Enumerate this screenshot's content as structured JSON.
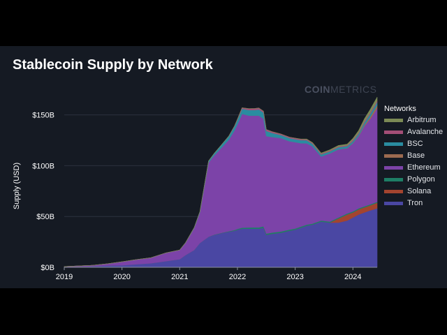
{
  "title": "Stablecoin Supply by Network",
  "brand": {
    "part1": "COIN",
    "part2": "METRICS"
  },
  "chart_data": {
    "type": "area",
    "stacked": true,
    "title": "Stablecoin Supply by Network",
    "xlabel": "",
    "ylabel": "Supply (USD)",
    "xlim": [
      2019.0,
      2024.42
    ],
    "ylim": [
      0,
      160
    ],
    "x_ticks": [
      "2019",
      "2020",
      "2021",
      "2022",
      "2023",
      "2024"
    ],
    "y_ticks": [
      "$0B",
      "$50B",
      "$100B",
      "$150B"
    ],
    "grid": true,
    "legend_title": "Networks",
    "legend_position": "right",
    "x": [
      2019.0,
      2019.5,
      2019.75,
      2020.0,
      2020.25,
      2020.5,
      2020.75,
      2021.0,
      2021.1,
      2021.25,
      2021.35,
      2021.5,
      2021.6,
      2021.75,
      2021.85,
      2021.95,
      2022.0,
      2022.08,
      2022.2,
      2022.3,
      2022.37,
      2022.45,
      2022.5,
      2022.6,
      2022.75,
      2022.9,
      2023.0,
      2023.1,
      2023.2,
      2023.3,
      2023.45,
      2023.6,
      2023.75,
      2023.9,
      2024.0,
      2024.1,
      2024.2,
      2024.3,
      2024.42
    ],
    "series": [
      {
        "name": "Arbitrum",
        "color": "#7b8a55",
        "values": [
          0,
          0,
          0,
          0,
          0,
          0,
          0,
          0,
          0,
          0,
          0,
          0,
          0,
          0,
          0,
          0,
          0,
          0,
          0,
          0,
          0,
          0,
          0,
          0,
          0,
          0,
          0,
          0.2,
          0.4,
          0.5,
          0.6,
          0.8,
          1,
          1,
          1.5,
          2,
          2.5,
          3,
          3.5
        ]
      },
      {
        "name": "Avalanche",
        "color": "#a34e76",
        "values": [
          0,
          0,
          0,
          0,
          0,
          0,
          0,
          0,
          0,
          0,
          0,
          0,
          0,
          0,
          0.2,
          0.4,
          0.6,
          1,
          1.4,
          1.5,
          1.5,
          1.4,
          1.4,
          1.2,
          1,
          1,
          1,
          0.9,
          0.8,
          0.8,
          0.8,
          0.8,
          0.8,
          0.9,
          1,
          1.1,
          1.2,
          1.3,
          1.4
        ]
      },
      {
        "name": "BSC",
        "color": "#2a8ca0",
        "values": [
          0,
          0,
          0,
          0,
          0,
          0,
          0,
          0,
          0.2,
          0.5,
          0.8,
          1.5,
          2,
          3,
          3.5,
          4,
          4.5,
          5,
          5.5,
          5.5,
          6,
          6,
          5,
          4,
          3,
          3,
          3,
          3,
          3,
          2.5,
          2,
          2,
          2,
          2,
          2,
          2,
          2.5,
          3,
          3
        ]
      },
      {
        "name": "Base",
        "color": "#9c6a50",
        "values": [
          0,
          0,
          0,
          0,
          0,
          0,
          0,
          0,
          0,
          0,
          0,
          0,
          0,
          0,
          0,
          0,
          0,
          0,
          0,
          0,
          0,
          0,
          0,
          0,
          0,
          0,
          0,
          0,
          0,
          0,
          0,
          0,
          0.1,
          0.2,
          0.3,
          0.5,
          1,
          2,
          3
        ]
      },
      {
        "name": "Ethereum",
        "color": "#7c43a8",
        "values": [
          0.4,
          1,
          1.8,
          3.4,
          4.6,
          5.4,
          8,
          9,
          12,
          21.5,
          30,
          73,
          78,
          85,
          90,
          98,
          103,
          112,
          110,
          110,
          110,
          106,
          96,
          94,
          92,
          87,
          85,
          82,
          80,
          76,
          63,
          67,
          67,
          64,
          67,
          71,
          79,
          84,
          92
        ]
      },
      {
        "name": "Polygon",
        "color": "#1e7e66",
        "values": [
          0,
          0,
          0,
          0,
          0,
          0,
          0,
          0,
          0,
          0,
          0,
          0.1,
          0.2,
          0.3,
          0.5,
          0.7,
          0.8,
          1,
          1.2,
          1.3,
          1.3,
          1.3,
          1.2,
          1.2,
          1.2,
          1.1,
          1.1,
          1.1,
          1,
          1,
          1,
          1,
          1,
          1,
          1,
          1,
          1,
          1,
          1
        ]
      },
      {
        "name": "Solana",
        "color": "#a3442f",
        "values": [
          0,
          0,
          0,
          0,
          0,
          0,
          0,
          0,
          0,
          0,
          0,
          0,
          0,
          0,
          0,
          0,
          0,
          0,
          0,
          0,
          0,
          0,
          0,
          0,
          0,
          0,
          0,
          0,
          0,
          0,
          0,
          0,
          4,
          6,
          5,
          5,
          5,
          5,
          5.5
        ]
      },
      {
        "name": "Tron",
        "color": "#4a47a3",
        "values": [
          0.3,
          1,
          1.7,
          2,
          3,
          4,
          6,
          8,
          12,
          17,
          24,
          30,
          32,
          34,
          35,
          36,
          37,
          38,
          38,
          38,
          38,
          39,
          32,
          33,
          34,
          36,
          37,
          39,
          41,
          42,
          45,
          44,
          44,
          46,
          49,
          52,
          54,
          56,
          58
        ]
      }
    ]
  }
}
